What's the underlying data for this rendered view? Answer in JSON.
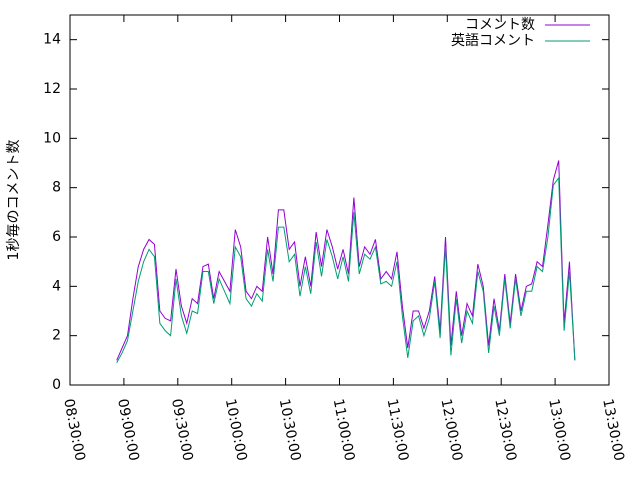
{
  "chart_data": {
    "type": "line",
    "ylabel": "1秒毎のコメント数",
    "x": [
      "08:56:00",
      "08:59:00",
      "09:02:00",
      "09:05:00",
      "09:08:00",
      "09:11:00",
      "09:14:00",
      "09:17:00",
      "09:20:00",
      "09:23:00",
      "09:26:00",
      "09:29:00",
      "09:32:00",
      "09:35:00",
      "09:38:00",
      "09:41:00",
      "09:44:00",
      "09:47:00",
      "09:50:00",
      "09:53:00",
      "09:56:00",
      "09:59:00",
      "10:02:00",
      "10:05:00",
      "10:08:00",
      "10:11:00",
      "10:14:00",
      "10:17:00",
      "10:20:00",
      "10:23:00",
      "10:26:00",
      "10:29:00",
      "10:32:00",
      "10:35:00",
      "10:38:00",
      "10:41:00",
      "10:44:00",
      "10:47:00",
      "10:50:00",
      "10:53:00",
      "10:56:00",
      "10:59:00",
      "11:02:00",
      "11:05:00",
      "11:08:00",
      "11:11:00",
      "11:14:00",
      "11:17:00",
      "11:20:00",
      "11:23:00",
      "11:26:00",
      "11:29:00",
      "11:32:00",
      "11:35:00",
      "11:38:00",
      "11:41:00",
      "11:44:00",
      "11:47:00",
      "11:50:00",
      "11:53:00",
      "11:56:00",
      "11:59:00",
      "12:02:00",
      "12:05:00",
      "12:08:00",
      "12:11:00",
      "12:14:00",
      "12:17:00",
      "12:20:00",
      "12:23:00",
      "12:26:00",
      "12:29:00",
      "12:32:00",
      "12:35:00",
      "12:38:00",
      "12:41:00",
      "12:44:00",
      "12:47:00",
      "12:50:00",
      "12:53:00",
      "12:56:00",
      "12:59:00",
      "13:02:00",
      "13:05:00",
      "13:08:00",
      "13:11:00"
    ],
    "series": [
      {
        "name": "コメント数",
        "color": "#9400d3",
        "values": [
          1.0,
          1.5,
          2.0,
          3.5,
          4.8,
          5.5,
          5.9,
          5.7,
          3.0,
          2.7,
          2.6,
          4.7,
          3.2,
          2.5,
          3.5,
          3.3,
          4.8,
          4.9,
          3.5,
          4.6,
          4.2,
          3.8,
          6.3,
          5.6,
          3.8,
          3.5,
          4.0,
          3.8,
          6.0,
          4.5,
          7.1,
          7.1,
          5.5,
          5.8,
          4.0,
          5.2,
          4.0,
          6.2,
          4.8,
          6.3,
          5.6,
          4.7,
          5.5,
          4.5,
          7.6,
          4.8,
          5.6,
          5.3,
          5.9,
          4.3,
          4.6,
          4.3,
          5.4,
          3.2,
          1.5,
          3.0,
          3.0,
          2.3,
          3.0,
          4.4,
          2.2,
          6.0,
          1.6,
          3.8,
          2.0,
          3.3,
          2.8,
          4.9,
          4.0,
          1.6,
          3.5,
          2.2,
          4.5,
          2.5,
          4.5,
          3.0,
          4.0,
          4.1,
          5.0,
          4.8,
          6.5,
          8.3,
          9.1,
          2.5,
          5.0,
          1.0
        ]
      },
      {
        "name": "英語コメント",
        "color": "#009e73",
        "values": [
          0.9,
          1.3,
          1.8,
          3.0,
          4.2,
          5.0,
          5.5,
          5.2,
          2.5,
          2.2,
          2.0,
          4.3,
          2.8,
          2.1,
          3.0,
          2.9,
          4.6,
          4.6,
          3.3,
          4.3,
          3.8,
          3.3,
          5.6,
          5.2,
          3.5,
          3.2,
          3.7,
          3.4,
          5.5,
          4.2,
          6.4,
          6.4,
          5.0,
          5.3,
          3.6,
          4.8,
          3.7,
          5.8,
          4.4,
          5.9,
          5.2,
          4.3,
          5.2,
          4.2,
          7.0,
          4.5,
          5.3,
          5.1,
          5.6,
          4.1,
          4.2,
          4.0,
          5.0,
          2.8,
          1.1,
          2.6,
          2.8,
          2.0,
          2.7,
          4.2,
          1.9,
          5.6,
          1.2,
          3.5,
          1.7,
          3.0,
          2.5,
          4.6,
          3.8,
          1.3,
          3.2,
          2.0,
          4.3,
          2.3,
          4.3,
          2.8,
          3.8,
          3.8,
          4.8,
          4.6,
          6.0,
          8.1,
          8.4,
          2.2,
          4.6,
          1.0
        ]
      }
    ],
    "xlim": [
      "08:30:00",
      "13:30:00"
    ],
    "xticks": [
      "08:30:00",
      "09:00:00",
      "09:30:00",
      "10:00:00",
      "10:30:00",
      "11:00:00",
      "11:30:00",
      "12:00:00",
      "12:30:00",
      "13:00:00",
      "13:30:00"
    ],
    "ylim": [
      0,
      15
    ],
    "yticks": [
      0,
      2,
      4,
      6,
      8,
      10,
      12,
      14
    ],
    "legend": "top right"
  }
}
